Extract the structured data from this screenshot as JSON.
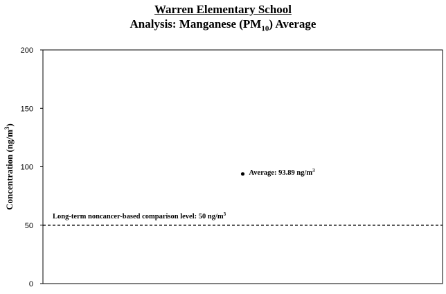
{
  "chart_data": {
    "type": "scatter",
    "title": "Warren Elementary School",
    "subtitle_prefix": "Analysis: Manganese (PM",
    "subtitle_sub": "10",
    "subtitle_suffix": ") Average",
    "ylabel_prefix": "Concentration (ng/m",
    "ylabel_sup": "3",
    "ylabel_suffix": ")",
    "ylim": [
      0,
      200
    ],
    "yticks": [
      0,
      50,
      100,
      150,
      200
    ],
    "grid": false,
    "points": [
      {
        "y": 93.89,
        "label_prefix": "Average: 93.89 ng/m",
        "label_sup": "3"
      }
    ],
    "reference_lines": [
      {
        "y": 50,
        "style": "dashed",
        "label_prefix": "Long-term noncancer-based comparison level:  50 ng/m",
        "label_sup": "3"
      }
    ]
  }
}
